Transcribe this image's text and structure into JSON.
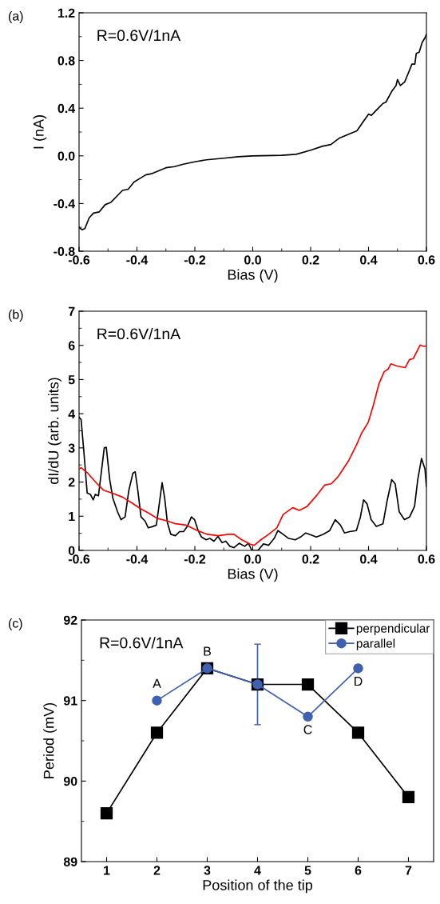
{
  "chart_data": [
    {
      "type": "line",
      "xlabel": "Bias (V)",
      "ylabel": "I (nA)",
      "annotations": [
        "(a)",
        "R=0.6V/1nA"
      ],
      "xlim": [
        -0.6,
        0.6
      ],
      "xticks": [
        -0.6,
        -0.4,
        -0.2,
        {
          "value": 0,
          "label": "0.0"
        },
        0.2,
        0.4,
        0.6
      ],
      "ylim": [
        -0.8,
        1.2
      ],
      "yticks": [
        -0.8,
        -0.4,
        {
          "value": 0,
          "label": "0.0"
        },
        0.4,
        0.8,
        1.2
      ],
      "grid": false,
      "legend": false,
      "series": [
        {
          "color": "#000000",
          "x": [
            -0.6,
            -0.59,
            -0.58,
            -0.565,
            -0.55,
            -0.53,
            -0.51,
            -0.49,
            -0.47,
            -0.45,
            -0.43,
            -0.41,
            -0.39,
            -0.37,
            -0.35,
            -0.33,
            -0.3,
            -0.27,
            -0.24,
            -0.2,
            -0.16,
            -0.1,
            -0.05,
            0,
            0.1,
            0.15,
            0.2,
            0.24,
            0.27,
            0.3,
            0.33,
            0.36,
            0.38,
            0.4,
            0.41,
            0.43,
            0.45,
            0.46,
            0.48,
            0.495,
            0.5,
            0.51,
            0.525,
            0.535,
            0.55,
            0.56,
            0.565,
            0.575,
            0.585,
            0.595,
            0.6
          ],
          "values": [
            -0.6,
            -0.62,
            -0.61,
            -0.52,
            -0.48,
            -0.47,
            -0.41,
            -0.39,
            -0.34,
            -0.29,
            -0.28,
            -0.22,
            -0.19,
            -0.16,
            -0.15,
            -0.13,
            -0.1,
            -0.09,
            -0.07,
            -0.05,
            -0.033,
            -0.02,
            -0.007,
            0,
            0.004,
            0.013,
            0.047,
            0.08,
            0.095,
            0.15,
            0.18,
            0.21,
            0.28,
            0.35,
            0.34,
            0.39,
            0.44,
            0.45,
            0.54,
            0.59,
            0.64,
            0.59,
            0.62,
            0.68,
            0.77,
            0.77,
            0.86,
            0.87,
            0.95,
            0.99,
            1.02
          ]
        }
      ]
    },
    {
      "type": "line",
      "xlabel": "Bias (V)",
      "ylabel": "dI/dU (arb. units)",
      "annotations": [
        "(b)",
        "R=0.6V/1nA"
      ],
      "xlim": [
        -0.6,
        0.6
      ],
      "xticks": [
        -0.6,
        -0.4,
        -0.2,
        {
          "value": 0,
          "label": "0.0"
        },
        0.2,
        0.4,
        0.6
      ],
      "ylim": [
        0,
        7
      ],
      "yticks": [
        0,
        1,
        2,
        3,
        4,
        5,
        6,
        7
      ],
      "grid": false,
      "legend": false,
      "series": [
        {
          "color": "#000000",
          "x": [
            -0.6,
            -0.593,
            -0.583,
            -0.572,
            -0.561,
            -0.551,
            -0.544,
            -0.533,
            -0.524,
            -0.513,
            -0.506,
            -0.494,
            -0.483,
            -0.467,
            -0.455,
            -0.441,
            -0.428,
            -0.414,
            -0.406,
            -0.397,
            -0.386,
            -0.372,
            -0.361,
            -0.345,
            -0.333,
            -0.324,
            -0.313,
            -0.304,
            -0.295,
            -0.283,
            -0.267,
            -0.253,
            -0.239,
            -0.226,
            -0.212,
            -0.201,
            -0.189,
            -0.177,
            -0.161,
            -0.148,
            -0.134,
            -0.12,
            -0.106,
            -0.093,
            -0.079,
            -0.065,
            -0.047,
            -0.028,
            -0.015,
            -0.003,
            0.018,
            0.037,
            0.055,
            0.074,
            0.087,
            0.105,
            0.124,
            0.147,
            0.165,
            0.183,
            0.202,
            0.22,
            0.243,
            0.266,
            0.285,
            0.303,
            0.317,
            0.335,
            0.358,
            0.372,
            0.383,
            0.395,
            0.409,
            0.427,
            0.45,
            0.464,
            0.48,
            0.492,
            0.506,
            0.524,
            0.542,
            0.559,
            0.57,
            0.583,
            0.595,
            0.6
          ],
          "values": [
            3.9,
            3.83,
            2.85,
            1.68,
            1.64,
            1.48,
            1.64,
            1.6,
            2.22,
            3.0,
            3.02,
            2.07,
            1.52,
            1.13,
            0.9,
            0.98,
            1.76,
            2.26,
            2.3,
            1.76,
            0.98,
            0.86,
            0.66,
            0.7,
            0.74,
            1.29,
            1.98,
            1.52,
            0.82,
            0.47,
            0.43,
            0.55,
            0.55,
            0.7,
            0.98,
            0.9,
            0.59,
            0.39,
            0.31,
            0.35,
            0.27,
            0.41,
            0.23,
            0.27,
            0.12,
            0.08,
            0.21,
            0.12,
            0.21,
            0.0,
            0.0,
            0.19,
            0.15,
            0.35,
            0.58,
            0.47,
            0.35,
            0.31,
            0.39,
            0.51,
            0.45,
            0.39,
            0.47,
            0.58,
            0.9,
            0.74,
            0.51,
            0.55,
            0.58,
            0.98,
            1.48,
            1.36,
            0.9,
            0.7,
            0.78,
            1.44,
            2.07,
            1.95,
            1.13,
            0.9,
            0.98,
            1.29,
            2.07,
            2.69,
            2.38,
            1.87
          ]
        },
        {
          "color": "#ff0000",
          "x": [
            -0.6,
            -0.593,
            -0.57,
            -0.542,
            -0.515,
            -0.487,
            -0.45,
            -0.414,
            -0.386,
            -0.359,
            -0.331,
            -0.295,
            -0.267,
            -0.23,
            -0.194,
            -0.157,
            -0.12,
            -0.083,
            -0.065,
            -0.038,
            -0.028,
            -0.009,
            0.005,
            0.028,
            0.055,
            0.083,
            0.105,
            0.138,
            0.161,
            0.188,
            0.22,
            0.248,
            0.271,
            0.294,
            0.33,
            0.358,
            0.376,
            0.399,
            0.417,
            0.436,
            0.454,
            0.468,
            0.477,
            0.5,
            0.527,
            0.541,
            0.555,
            0.578,
            0.592,
            0.6
          ],
          "values": [
            2.38,
            2.42,
            2.26,
            1.99,
            1.76,
            1.68,
            1.56,
            1.37,
            1.21,
            1.09,
            0.94,
            0.86,
            0.78,
            0.74,
            0.59,
            0.47,
            0.43,
            0.47,
            0.47,
            0.31,
            0.27,
            0.18,
            0.15,
            0.31,
            0.47,
            0.66,
            1.05,
            1.25,
            1.17,
            1.29,
            1.6,
            1.91,
            1.95,
            2.15,
            2.61,
            3.08,
            3.43,
            3.75,
            4.26,
            4.88,
            5.23,
            5.31,
            5.46,
            5.39,
            5.35,
            5.58,
            5.62,
            6.01,
            5.97,
            5.99
          ]
        }
      ]
    },
    {
      "type": "line",
      "xlabel": "Position of the tip",
      "ylabel": "Period (mV)",
      "annotations": [
        "(c)",
        "R=0.6V/1nA",
        {
          "text": "A",
          "x": 2,
          "y": 91.0
        },
        {
          "text": "B",
          "x": 3,
          "y": 91.4
        },
        {
          "text": "C",
          "x": 5,
          "y": 90.8
        },
        {
          "text": "D",
          "x": 6,
          "y": 91.4
        }
      ],
      "xlim": [
        0.5,
        7.5
      ],
      "xticks": [
        1,
        2,
        3,
        4,
        5,
        6,
        7
      ],
      "ylim": [
        89,
        92
      ],
      "yticks": [
        89,
        90,
        91,
        92
      ],
      "grid": false,
      "legend": "top right",
      "series": [
        {
          "name": "perpendicular",
          "color": "#000000",
          "marker": "square",
          "x": [
            1,
            2,
            3,
            4,
            5,
            6,
            7
          ],
          "values": [
            89.6,
            90.6,
            91.4,
            91.2,
            91.2,
            90.6,
            89.8
          ]
        },
        {
          "name": "parallel",
          "color": "#4060b0",
          "marker": "circle",
          "x": [
            2,
            3,
            4,
            5,
            6
          ],
          "values": [
            91.0,
            91.4,
            91.2,
            90.8,
            91.4
          ],
          "errors": [
            null,
            null,
            0.5,
            null,
            null
          ]
        }
      ]
    }
  ]
}
